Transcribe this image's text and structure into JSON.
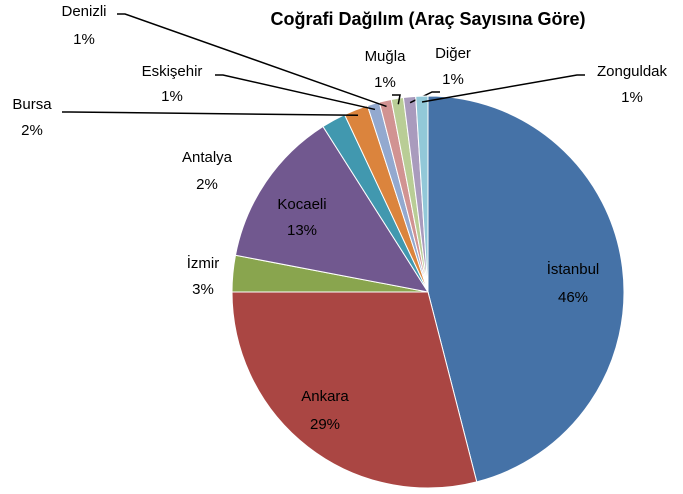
{
  "chart_data": {
    "type": "pie",
    "title": "Coğrafi Dağılım (Araç Sayısına Göre)",
    "categories": [
      "İstanbul",
      "Ankara",
      "İzmir",
      "Kocaeli",
      "Antalya",
      "Bursa",
      "Eskişehir",
      "Denizli",
      "Muğla",
      "Diğer",
      "Zonguldak"
    ],
    "values": [
      46,
      29,
      3,
      13,
      2,
      2,
      1,
      1,
      1,
      1,
      1
    ],
    "value_labels": [
      "46%",
      "29%",
      "3%",
      "13%",
      "2%",
      "2%",
      "1%",
      "1%",
      "1%",
      "1%",
      "1%"
    ],
    "colors": [
      "#4572a7",
      "#aa4643",
      "#89a54e",
      "#71588f",
      "#4198af",
      "#db843d",
      "#93a9cf",
      "#d19392",
      "#b9cd96",
      "#a99bbd",
      "#92c8d8"
    ]
  }
}
